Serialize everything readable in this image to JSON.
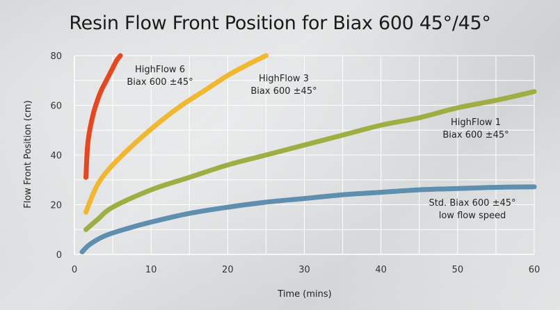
{
  "chart_data": {
    "type": "line",
    "title": "Resin Flow Front Position for Biax 600 45°/45°",
    "xlabel": "Time (mins)",
    "ylabel": "Flow Front Position (cm)",
    "xlim": [
      0,
      60
    ],
    "ylim": [
      0,
      80
    ],
    "x_ticks": [
      0,
      10,
      20,
      30,
      40,
      50,
      60
    ],
    "y_ticks": [
      0,
      20,
      40,
      60,
      80
    ],
    "grid": true,
    "series": [
      {
        "color": "#e8461e",
        "annotation": [
          "HighFlow 6",
          "Biax 600 ±45°"
        ],
        "x": [
          1.5,
          1.7,
          2.0,
          2.5,
          3.0,
          3.5,
          4.0,
          4.5,
          5.0,
          5.5,
          6.0
        ],
        "y": [
          31,
          43,
          50,
          57,
          62,
          66,
          69,
          72,
          75,
          78,
          80
        ]
      },
      {
        "color": "#f1b72e",
        "annotation": [
          "HighFlow 3",
          "Biax 600 ±45°"
        ],
        "x": [
          1.5,
          3,
          5,
          8,
          11,
          14,
          17,
          20,
          23,
          25
        ],
        "y": [
          17,
          28,
          36,
          45,
          53,
          60,
          66,
          72,
          77,
          80
        ]
      },
      {
        "color": "#9fae43",
        "annotation": [
          "HighFlow 1",
          "Biax 600 ±45°"
        ],
        "x": [
          1.5,
          3,
          5,
          10,
          15,
          20,
          25,
          30,
          35,
          40,
          45,
          50,
          55,
          60
        ],
        "y": [
          10,
          14,
          19,
          26,
          31,
          36,
          40,
          44,
          48,
          52,
          55,
          59,
          62,
          65.5
        ]
      },
      {
        "color": "#5f8fae",
        "annotation": [
          "Std. Biax 600 ±45°",
          "low flow speed"
        ],
        "x": [
          1,
          2,
          4,
          7,
          10,
          15,
          20,
          25,
          30,
          35,
          40,
          45,
          50,
          55,
          60
        ],
        "y": [
          1,
          4,
          7.5,
          10.5,
          13,
          16.5,
          19,
          21,
          22.5,
          24,
          25,
          26,
          26.5,
          27,
          27.2
        ]
      }
    ]
  }
}
